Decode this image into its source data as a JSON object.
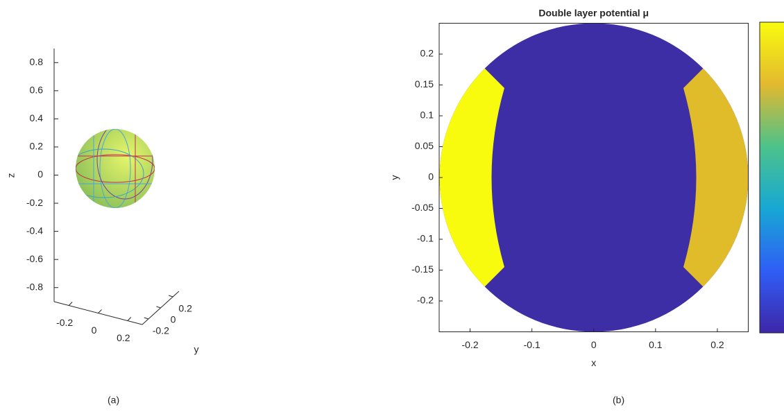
{
  "chart_data": [
    {
      "type": "surface3d",
      "zlabel": "z",
      "ylabel": "y",
      "zlim": [
        -0.9,
        0.9
      ],
      "zticks": [
        0.8,
        0.6,
        0.4,
        0.2,
        0,
        -0.2,
        -0.4,
        -0.6,
        -0.8
      ],
      "xlim": [
        -0.3,
        0.3
      ],
      "xticks": [
        -0.2,
        0,
        0.2
      ],
      "ylim": [
        -0.3,
        0.3
      ],
      "yticks": [
        -0.2,
        0,
        0.2
      ]
    },
    {
      "type": "image",
      "title": "Double layer potential μ",
      "xlabel": "x",
      "ylabel": "y",
      "xlim": [
        -0.25,
        0.25
      ],
      "xticks": [
        -0.2,
        -0.1,
        0,
        0.1,
        0.2
      ],
      "ylim": [
        -0.25,
        0.25
      ],
      "yticks": [
        0.2,
        0.15,
        0.1,
        0.05,
        0,
        -0.05,
        -0.1,
        -0.15,
        -0.2
      ]
    }
  ],
  "captions": [
    "(a)",
    "(b)"
  ]
}
